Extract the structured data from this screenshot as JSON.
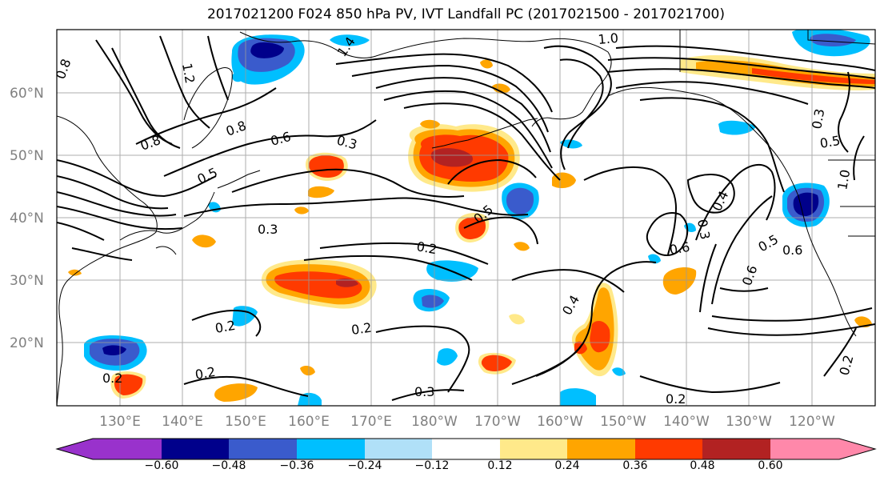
{
  "title": "2017021200 F024 850 hPa PV, IVT Landfall PC (2017021500 - 2017021700)",
  "lat_labels": [
    "60°N",
    "50°N",
    "40°N",
    "30°N",
    "20°N"
  ],
  "lon_labels": [
    "130°E",
    "140°E",
    "150°E",
    "160°E",
    "170°E",
    "180°W",
    "170°W",
    "160°W",
    "150°W",
    "140°W",
    "130°W",
    "120°W"
  ],
  "colorbar": {
    "ticks": [
      "−0.60",
      "−0.48",
      "−0.36",
      "−0.24",
      "−0.12",
      "0.12",
      "0.24",
      "0.36",
      "0.48",
      "0.60"
    ],
    "colors": [
      "#9932cc",
      "#00008b",
      "#3a5bcc",
      "#00bfff",
      "#b0e0f8",
      "#ffffff",
      "#ffe98a",
      "#ffa500",
      "#ff3a00",
      "#b22222",
      "#ff88aa"
    ]
  },
  "contour_labels": [
    "0.8",
    "1.2",
    "1.4",
    "0.8",
    "0.5",
    "0.6",
    "0.3",
    "1.0",
    "0.8",
    "0.4",
    "0.3",
    "0.6",
    "0.5",
    "0.6",
    "0.6",
    "0.4",
    "0.3",
    "0.2",
    "0.2",
    "0.2",
    "0.2",
    "0.2",
    "0.3",
    "0.2",
    "0.2",
    "0.5",
    "1.0",
    "0.5",
    "0.3"
  ],
  "colors": {
    "gridline": "#999999",
    "contour": "#000000",
    "coast": "#000000"
  }
}
